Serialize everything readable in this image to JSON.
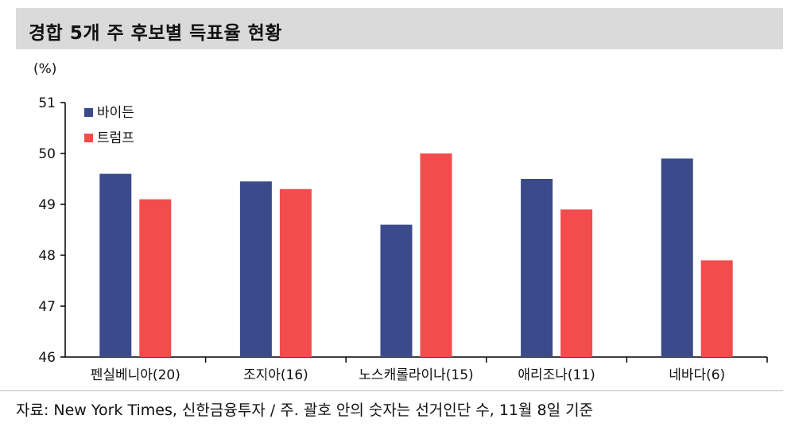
{
  "title": "경합 5개 주 후보별 득표율 현황",
  "unit": "(%)",
  "source": "자료: New York Times, 신한금융투자 / 주. 괄호 안의 숫자는 선거인단 수, 11월 8일 기준",
  "colors": {
    "biden": "#3a4a8a",
    "trump": "#f24c4c",
    "title_bg": "#dadada"
  },
  "chart_data": {
    "type": "bar",
    "categories": [
      "펜실베니아(20)",
      "조지아(16)",
      "노스캐롤라이나(15)",
      "애리조나(11)",
      "네바다(6)"
    ],
    "series": [
      {
        "name": "바이든",
        "values": [
          49.6,
          49.45,
          48.6,
          49.5,
          49.9
        ]
      },
      {
        "name": "트럼프",
        "values": [
          49.1,
          49.3,
          50.0,
          48.9,
          47.9
        ]
      }
    ],
    "ylim": [
      46,
      51
    ],
    "yticks": [
      "46",
      "47",
      "48",
      "49",
      "50",
      "51"
    ],
    "ylabel": "(%)",
    "xlabel": "",
    "legend_position": "top-left",
    "grid": false
  }
}
